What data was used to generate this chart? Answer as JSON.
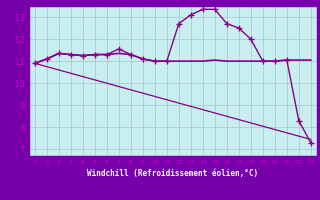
{
  "xlabel": "Windchill (Refroidissement éolien,°C)",
  "bg_color": "#c8eef0",
  "plot_bg": "#c8eef0",
  "axis_bg": "#7700aa",
  "grid_color": "#aadddd",
  "line_color": "#880088",
  "tick_label_color": "#cc00cc",
  "xlim": [
    -0.5,
    23.5
  ],
  "ylim": [
    6.7,
    13.5
  ],
  "xticks": [
    0,
    1,
    2,
    3,
    4,
    5,
    6,
    7,
    8,
    9,
    10,
    11,
    12,
    13,
    14,
    15,
    16,
    17,
    18,
    19,
    20,
    21,
    22,
    23
  ],
  "yticks": [
    7,
    8,
    9,
    10,
    11,
    12,
    13
  ],
  "curve1_x": [
    0,
    1,
    2,
    3,
    4,
    5,
    6,
    7,
    8,
    9,
    10,
    11,
    12,
    13,
    14,
    15,
    16,
    17,
    18,
    19,
    20,
    21,
    22,
    23
  ],
  "curve1_y": [
    10.9,
    11.1,
    11.35,
    11.3,
    11.25,
    11.3,
    11.3,
    11.55,
    11.3,
    11.1,
    11.0,
    11.0,
    12.7,
    13.1,
    13.35,
    13.35,
    12.7,
    12.5,
    12.0,
    11.0,
    11.0,
    11.05,
    8.3,
    7.3
  ],
  "curve2_x": [
    0,
    1,
    2,
    3,
    4,
    5,
    6,
    7,
    8,
    9,
    10,
    11,
    12,
    13,
    14,
    15,
    16,
    17,
    18,
    19,
    20,
    21,
    22,
    23
  ],
  "curve2_y": [
    10.9,
    11.1,
    11.35,
    11.3,
    11.25,
    11.3,
    11.3,
    11.35,
    11.3,
    11.1,
    11.0,
    11.0,
    11.0,
    11.0,
    11.0,
    11.05,
    11.0,
    11.0,
    11.0,
    11.0,
    11.0,
    11.05,
    11.05,
    11.05
  ],
  "curve3_x": [
    0,
    1,
    2,
    3,
    4,
    5,
    6,
    7,
    8,
    9,
    10,
    11,
    12,
    13,
    14,
    15,
    16,
    17,
    18,
    19,
    20,
    21,
    22,
    23
  ],
  "curve3_y": [
    10.9,
    10.75,
    10.6,
    10.45,
    10.3,
    10.15,
    10.0,
    9.85,
    9.7,
    9.55,
    9.4,
    9.25,
    9.1,
    8.95,
    8.8,
    8.65,
    8.5,
    8.35,
    8.2,
    8.05,
    7.9,
    7.75,
    7.6,
    7.45
  ],
  "xlabel_color": "#cc00cc",
  "xlabel_bg": "#7700aa",
  "spine_color": "#7700aa"
}
